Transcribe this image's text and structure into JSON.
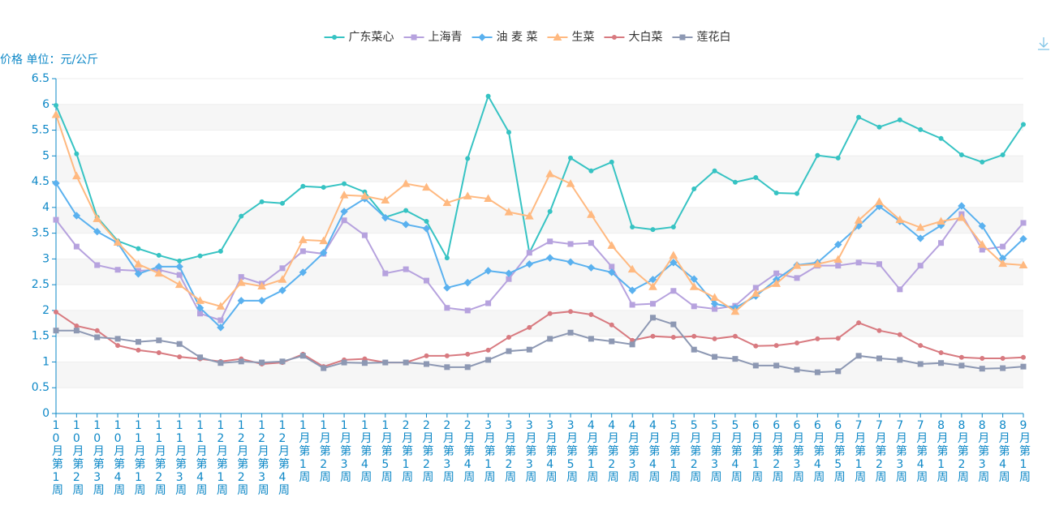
{
  "chart_data": {
    "type": "line",
    "y_label": "价格 单位：元/公斤",
    "categories": [
      "10月第1周",
      "10月第2周",
      "10月第3周",
      "10月第4周",
      "11月第1周",
      "11月第2周",
      "11月第3周",
      "11月第4周",
      "12月第1周",
      "12月第2周",
      "12月第3周",
      "12月第4周",
      "1月第1周",
      "1月第2周",
      "1月第3周",
      "1月第4周",
      "1月第5周",
      "2月第1周",
      "2月第2周",
      "2月第3周",
      "2月第4周",
      "3月第1周",
      "3月第2周",
      "3月第3周",
      "3月第4周",
      "3月第5周",
      "4月第1周",
      "4月第2周",
      "4月第3周",
      "4月第4周",
      "5月第1周",
      "5月第2周",
      "5月第3周",
      "5月第4周",
      "6月第1周",
      "6月第2周",
      "6月第3周",
      "6月第4周",
      "6月第5周",
      "7月第1周",
      "7月第2周",
      "7月第3周",
      "7月第4周",
      "8月第1周",
      "8月第2周",
      "8月第3周",
      "8月第4周",
      "9月第1周"
    ],
    "ylim": [
      0,
      6.5
    ],
    "yticks": [
      0,
      0.5,
      1,
      1.5,
      2,
      2.5,
      3,
      3.5,
      4,
      4.5,
      5,
      5.5,
      6,
      6.5
    ],
    "grid": true,
    "legend": "top",
    "series": [
      {
        "name": "广东菜心",
        "color": "#36c3c3",
        "marker": "circle",
        "values": [
          5.98,
          5.04,
          3.81,
          3.35,
          3.2,
          3.07,
          2.96,
          3.06,
          3.15,
          3.83,
          4.11,
          4.08,
          4.41,
          4.39,
          4.46,
          4.3,
          3.81,
          3.94,
          3.73,
          3.02,
          4.95,
          6.16,
          5.46,
          3.12,
          3.92,
          4.96,
          4.71,
          4.88,
          3.62,
          3.57,
          3.62,
          4.36,
          4.71,
          4.49,
          4.58,
          4.28,
          4.27,
          5.01,
          4.96,
          5.75,
          5.56,
          5.7,
          5.51,
          5.34,
          5.02,
          4.88,
          5.02,
          5.61
        ]
      },
      {
        "name": "上海青",
        "color": "#b6a2de",
        "marker": "square",
        "values": [
          3.76,
          3.24,
          2.88,
          2.79,
          2.77,
          2.79,
          2.69,
          1.94,
          1.81,
          2.65,
          2.52,
          2.82,
          3.15,
          3.1,
          3.75,
          3.46,
          2.72,
          2.8,
          2.58,
          2.05,
          2.0,
          2.14,
          2.61,
          3.12,
          3.34,
          3.29,
          3.31,
          2.85,
          2.11,
          2.13,
          2.38,
          2.08,
          2.03,
          2.09,
          2.44,
          2.72,
          2.63,
          2.87,
          2.87,
          2.93,
          2.9,
          2.41,
          2.87,
          3.31,
          3.87,
          3.18,
          3.24,
          3.7
        ]
      },
      {
        "name": "油 麦 菜",
        "color": "#5ab1ef",
        "marker": "diamond",
        "values": [
          4.47,
          3.84,
          3.53,
          3.31,
          2.71,
          2.85,
          2.85,
          2.05,
          1.67,
          2.19,
          2.19,
          2.39,
          2.74,
          3.12,
          3.92,
          4.17,
          3.8,
          3.67,
          3.59,
          2.44,
          2.54,
          2.77,
          2.72,
          2.9,
          3.02,
          2.94,
          2.83,
          2.74,
          2.39,
          2.6,
          2.93,
          2.61,
          2.13,
          2.05,
          2.28,
          2.6,
          2.88,
          2.93,
          3.28,
          3.64,
          4.02,
          3.73,
          3.4,
          3.65,
          4.03,
          3.64,
          3.01,
          3.39
        ]
      },
      {
        "name": "生菜",
        "color": "#ffb980",
        "marker": "triangle",
        "values": [
          5.8,
          4.61,
          3.78,
          3.32,
          2.9,
          2.72,
          2.5,
          2.19,
          2.08,
          2.54,
          2.47,
          2.6,
          3.37,
          3.35,
          4.24,
          4.22,
          4.14,
          4.46,
          4.39,
          4.09,
          4.22,
          4.17,
          3.91,
          3.83,
          4.65,
          4.46,
          3.86,
          3.26,
          2.8,
          2.46,
          3.07,
          2.46,
          2.25,
          1.98,
          2.33,
          2.52,
          2.87,
          2.9,
          2.99,
          3.75,
          4.11,
          3.76,
          3.61,
          3.73,
          3.8,
          3.28,
          2.91,
          2.88
        ]
      },
      {
        "name": "大白菜",
        "color": "#d87a80",
        "marker": "circle",
        "values": [
          1.97,
          1.7,
          1.61,
          1.32,
          1.23,
          1.18,
          1.1,
          1.06,
          1.01,
          1.06,
          0.96,
          0.99,
          1.15,
          0.91,
          1.04,
          1.06,
          0.99,
          0.99,
          1.12,
          1.12,
          1.15,
          1.23,
          1.48,
          1.67,
          1.94,
          1.98,
          1.92,
          1.72,
          1.42,
          1.5,
          1.48,
          1.5,
          1.45,
          1.5,
          1.31,
          1.32,
          1.37,
          1.45,
          1.46,
          1.76,
          1.61,
          1.53,
          1.32,
          1.18,
          1.09,
          1.07,
          1.07,
          1.09
        ]
      },
      {
        "name": "莲花白",
        "color": "#8d98b3",
        "marker": "square",
        "values": [
          1.61,
          1.61,
          1.48,
          1.45,
          1.39,
          1.42,
          1.35,
          1.09,
          0.98,
          1.01,
          0.99,
          1.01,
          1.12,
          0.88,
          0.99,
          0.98,
          0.99,
          0.99,
          0.96,
          0.9,
          0.9,
          1.04,
          1.21,
          1.24,
          1.45,
          1.57,
          1.45,
          1.4,
          1.34,
          1.86,
          1.73,
          1.24,
          1.1,
          1.06,
          0.93,
          0.93,
          0.85,
          0.8,
          0.82,
          1.12,
          1.07,
          1.04,
          0.96,
          0.98,
          0.93,
          0.87,
          0.88,
          0.91
        ]
      }
    ]
  }
}
